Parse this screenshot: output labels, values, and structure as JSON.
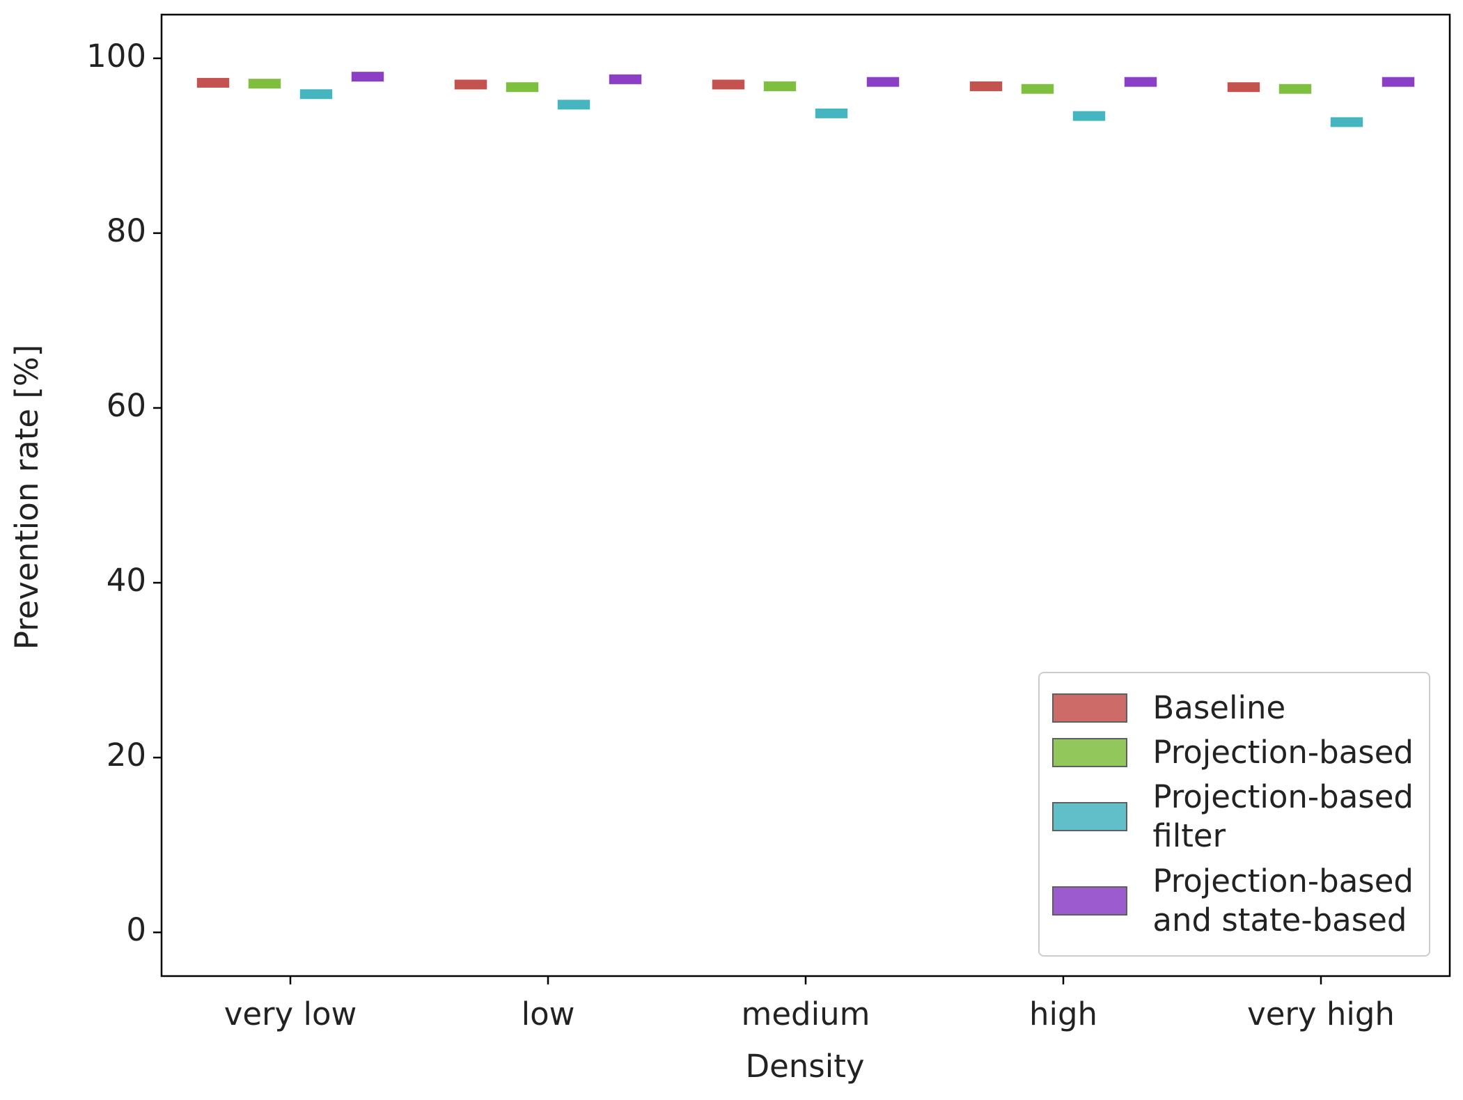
{
  "chart_data": {
    "type": "box",
    "x_label": "Density",
    "y_label": "Prevention rate [%]",
    "categories": [
      "very low",
      "low",
      "medium",
      "high",
      "very high"
    ],
    "series": [
      {
        "name": "Baseline",
        "color": "#c4524e",
        "values": [
          97.2,
          97.0,
          97.0,
          96.8,
          96.7
        ]
      },
      {
        "name": "Projection-based",
        "color": "#7fbf3f",
        "values": [
          97.1,
          96.7,
          96.8,
          96.5,
          96.5
        ]
      },
      {
        "name": "Projection-based\nfilter",
        "color": "#45b5c0",
        "values": [
          95.9,
          94.7,
          93.7,
          93.4,
          92.7
        ]
      },
      {
        "name": "Projection-based\nand state-based",
        "color": "#8b3fc6",
        "values": [
          97.9,
          97.6,
          97.3,
          97.3,
          97.3
        ]
      }
    ],
    "ylim": [
      -5,
      105
    ],
    "yticks": [
      0,
      20,
      40,
      60,
      80,
      100
    ],
    "legend": "lower right"
  }
}
